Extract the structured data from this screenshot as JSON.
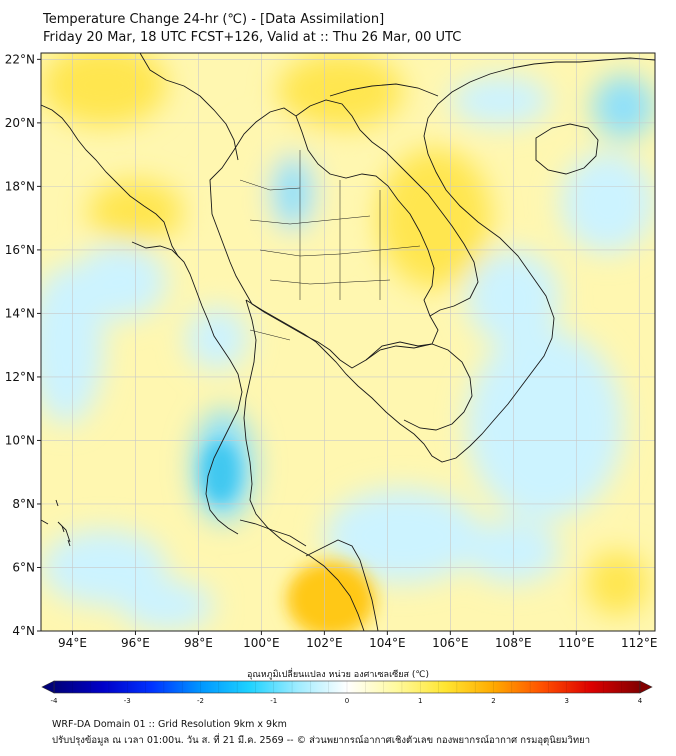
{
  "header": {
    "title": "Temperature Change 24-hr (℃) - [Data Assimilation]",
    "subtitle": "Friday 20 Mar, 18 UTC FCST+126, Valid at :: Thu 26 Mar, 00 UTC"
  },
  "map": {
    "lon_range": [
      93,
      112.5
    ],
    "lat_range": [
      4,
      22.2
    ],
    "lon_ticks": [
      {
        "value": 94,
        "label": "94°E"
      },
      {
        "value": 96,
        "label": "96°E"
      },
      {
        "value": 98,
        "label": "98°E"
      },
      {
        "value": 100,
        "label": "100°E"
      },
      {
        "value": 102,
        "label": "102°E"
      },
      {
        "value": 104,
        "label": "104°E"
      },
      {
        "value": 106,
        "label": "106°E"
      },
      {
        "value": 108,
        "label": "108°E"
      },
      {
        "value": 110,
        "label": "110°E"
      },
      {
        "value": 112,
        "label": "112°E"
      }
    ],
    "lat_ticks": [
      {
        "value": 22,
        "label": "22°N"
      },
      {
        "value": 20,
        "label": "20°N"
      },
      {
        "value": 18,
        "label": "18°N"
      },
      {
        "value": 16,
        "label": "16°N"
      },
      {
        "value": 14,
        "label": "14°N"
      },
      {
        "value": 12,
        "label": "12°N"
      },
      {
        "value": 10,
        "label": "10°N"
      },
      {
        "value": 8,
        "label": "8°N"
      },
      {
        "value": 6,
        "label": "6°N"
      },
      {
        "value": 4,
        "label": "4°N"
      }
    ],
    "colors": {
      "land_line": "#1a1a1a",
      "grid": "#c8c8c8",
      "warm_light": "#fff7b0",
      "warm_mid": "#ffe650",
      "warm_strong": "#ffc814",
      "cool_light": "#ccf3ff",
      "cool_mid": "#8fe0fa",
      "cool_strong": "#3fc8f0"
    }
  },
  "colorbar": {
    "label": "อุณหภูมิเปลี่ยนแปลง หน่วย องศาเซลเซียส (℃)",
    "min": -4,
    "max": 4,
    "ticks": [
      {
        "value": -4,
        "label": "-4"
      },
      {
        "value": -3,
        "label": "-3"
      },
      {
        "value": -2,
        "label": "-2"
      },
      {
        "value": -1,
        "label": "-1"
      },
      {
        "value": 0,
        "label": "0"
      },
      {
        "value": 1,
        "label": "1"
      },
      {
        "value": 2,
        "label": "2"
      },
      {
        "value": 3,
        "label": "3"
      },
      {
        "value": 4,
        "label": "4"
      }
    ],
    "colors": [
      "#00007a",
      "#0000c8",
      "#0032ff",
      "#0096ff",
      "#1ed2ff",
      "#a0ecff",
      "#ffffff",
      "#fffaa0",
      "#ffe632",
      "#ffaa00",
      "#ff5000",
      "#dc0000",
      "#820000"
    ]
  },
  "footer": {
    "line1": "WRF-DA Domain 01 :: Grid Resolution 9km x 9km",
    "line2": "ปรับปรุงข้อมูล ณ เวลา 01:00น. วัน ส. ที่ 21 มี.ค. 2569 -- © ส่วนพยากรณ์อากาศเชิงตัวเลข กองพยากรณ์อากาศ กรมอุตุนิยมวิทยา"
  }
}
